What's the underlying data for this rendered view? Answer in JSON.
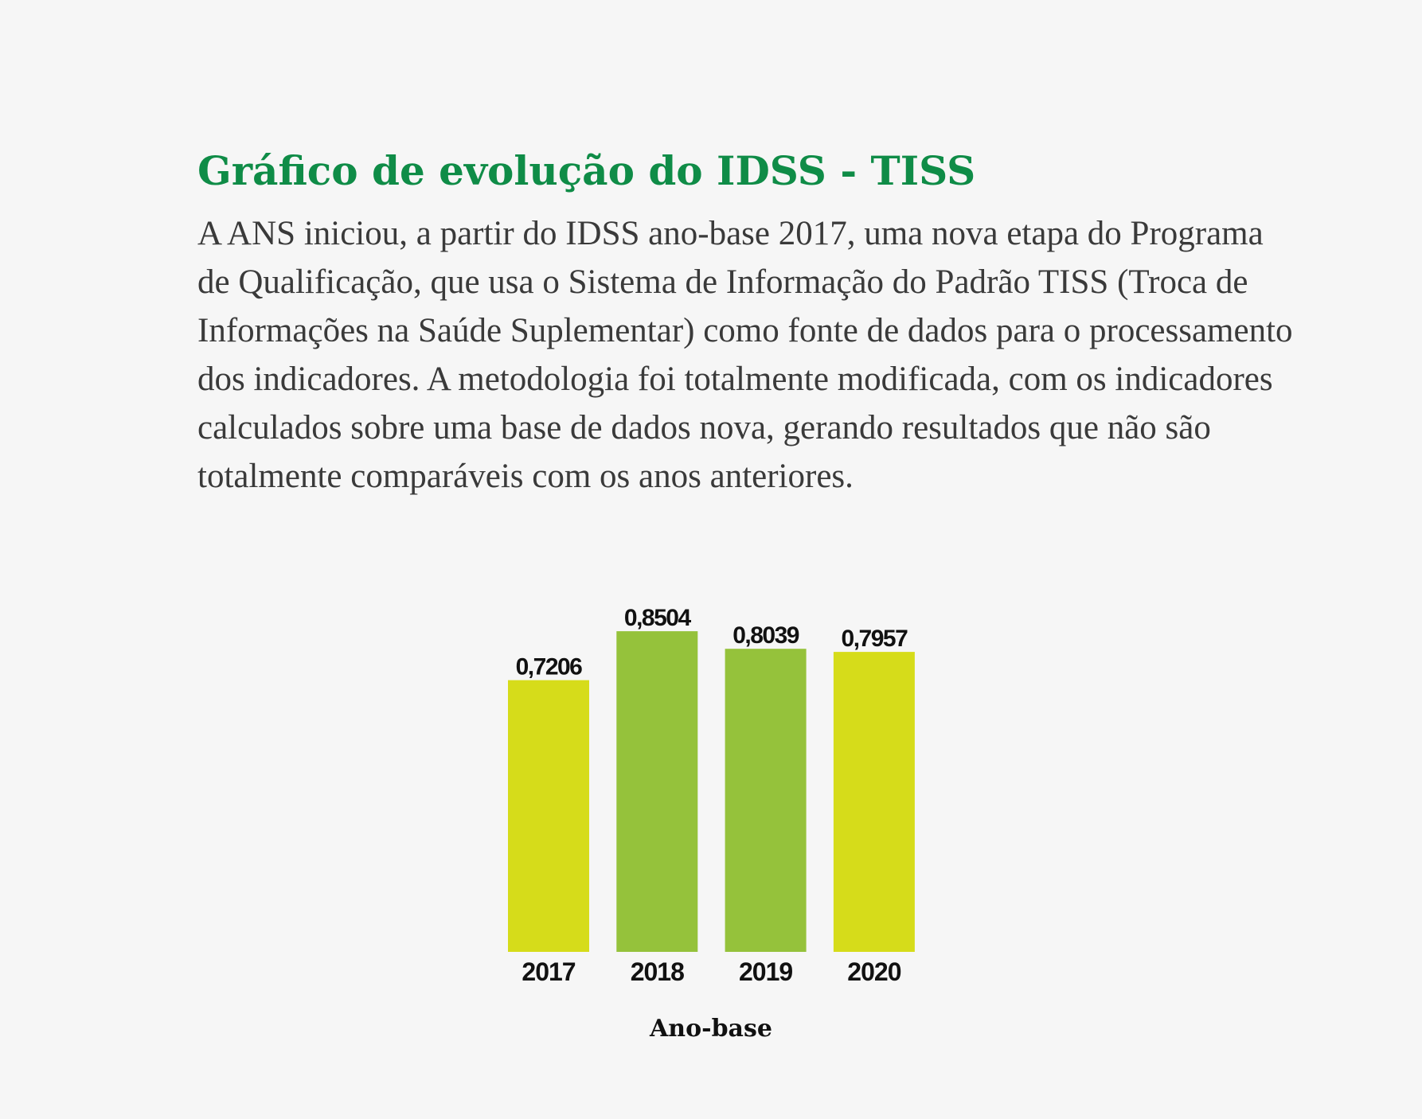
{
  "heading": "Gráfico de evolução do IDSS - TISS",
  "intro": "A ANS iniciou, a partir do IDSS ano-base 2017, uma nova etapa do Programa de Qualificação, que usa o Sistema de Informação do Padrão TISS (Troca de Informações na Saúde Suplementar) como fonte de dados para o processamento dos indicadores. A metodologia foi totalmente modificada, com os indicadores calculados sobre uma base de dados nova, gerando resultados que não são totalmente comparáveis com os anos anteriores.",
  "colors": {
    "heading": "#0f8c47",
    "bar_yellow": "#d6dc1a",
    "bar_green": "#95c23b"
  },
  "chart_data": {
    "type": "bar",
    "categories": [
      "2017",
      "2018",
      "2019",
      "2020"
    ],
    "values": [
      0.7206,
      0.8504,
      0.8039,
      0.7957
    ],
    "value_labels": [
      "0,7206",
      "0,8504",
      "0,8039",
      "0,7957"
    ],
    "bar_colors": [
      "#d6dc1a",
      "#95c23b",
      "#95c23b",
      "#d6dc1a"
    ],
    "xlabel": "Ano-base",
    "ylabel": "",
    "ylim": [
      0,
      1.085
    ],
    "grid": false,
    "legend": "none"
  }
}
